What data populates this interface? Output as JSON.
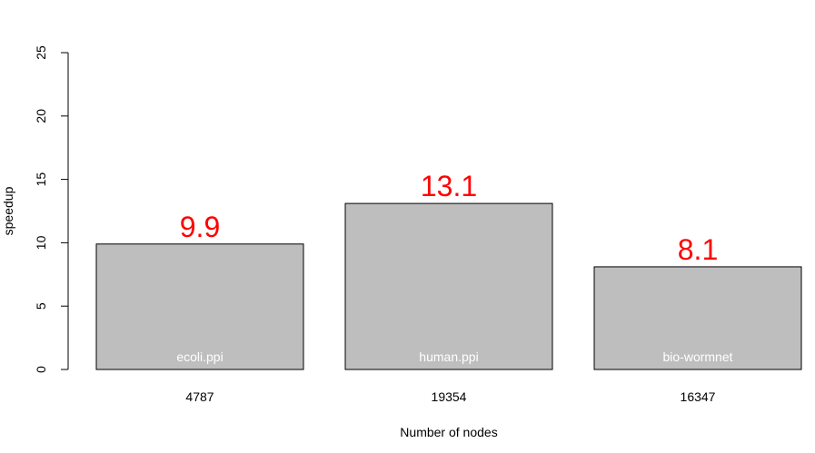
{
  "chart_data": {
    "type": "bar",
    "categories": [
      "4787",
      "19354",
      "16347"
    ],
    "bar_labels": [
      "ecoli.ppi",
      "human.ppi",
      "bio-wormnet"
    ],
    "values": [
      9.9,
      13.1,
      8.1
    ],
    "value_labels": [
      "9.9",
      "13.1",
      "8.1"
    ],
    "xlabel": "Number of nodes",
    "ylabel": "speedup",
    "ylim": [
      0,
      25
    ],
    "yticks": [
      0,
      5,
      10,
      15,
      20,
      25
    ],
    "grid": false,
    "colors": {
      "bar_fill": "#bebebe",
      "bar_stroke": "#000000",
      "value_label": "#ff0000",
      "bar_label": "#ffffff"
    }
  }
}
